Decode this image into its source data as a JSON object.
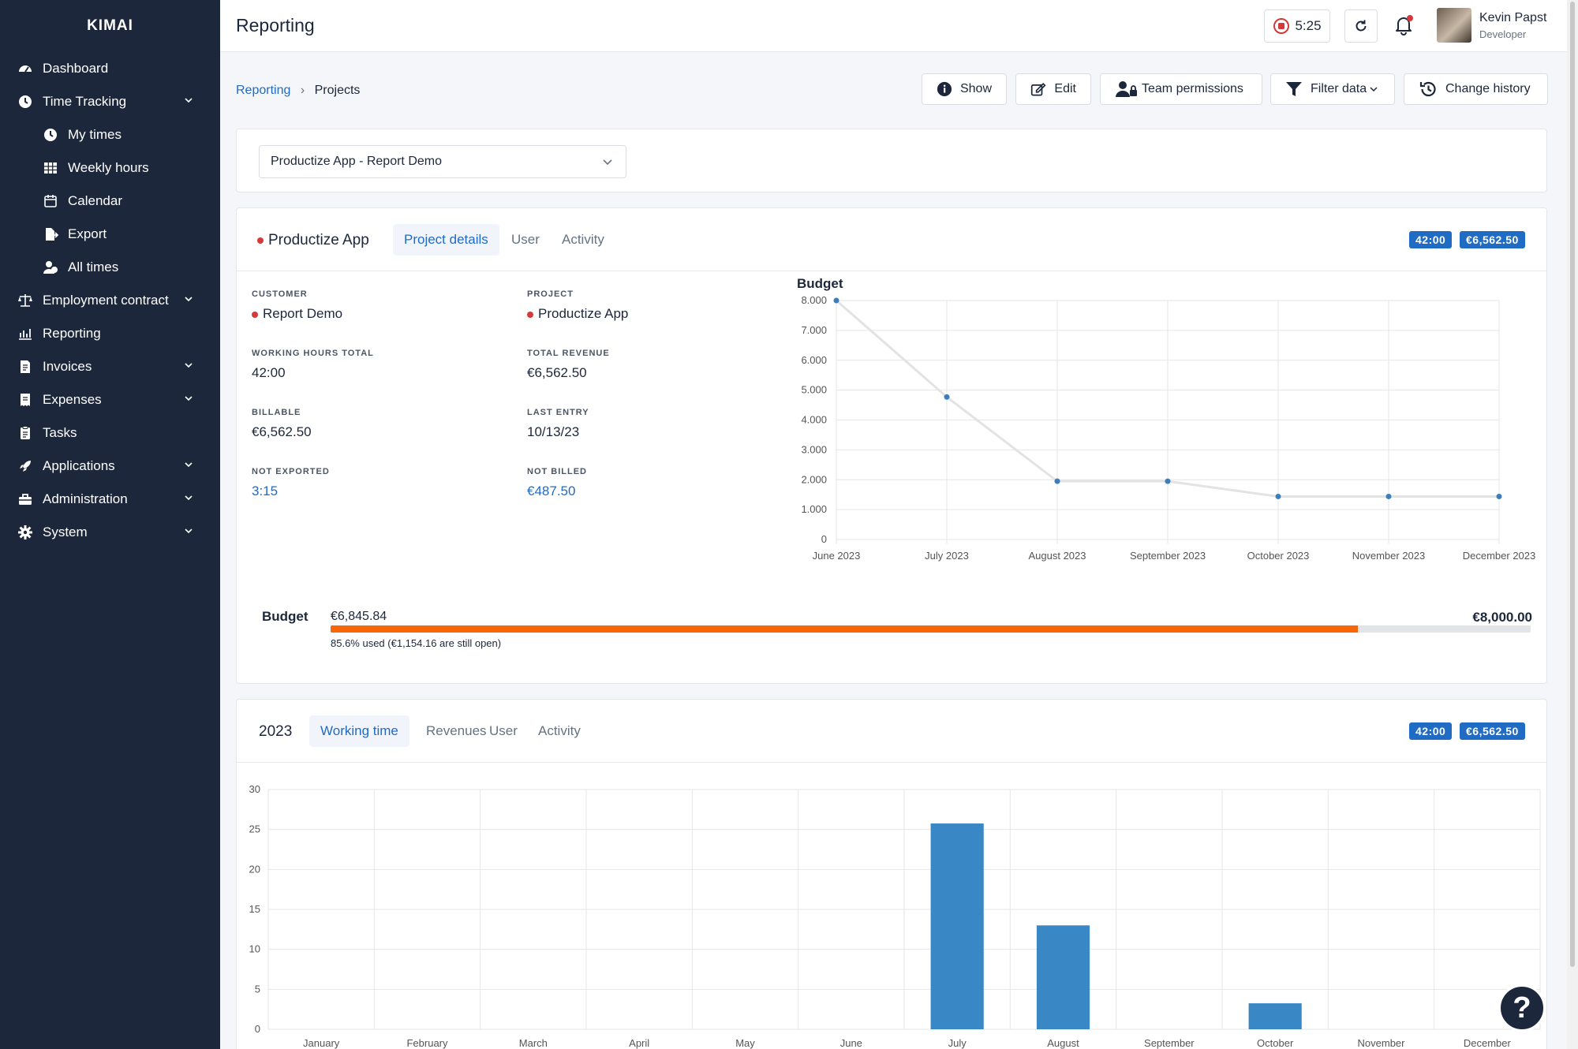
{
  "app": {
    "brand": "KIMAI"
  },
  "sidebar": {
    "items": [
      {
        "label": "Dashboard",
        "icon": "dashboard-icon"
      },
      {
        "label": "Time Tracking",
        "icon": "clock-icon",
        "expand": true
      },
      {
        "label": "My times",
        "icon": "clock-icon",
        "sub": true
      },
      {
        "label": "Weekly hours",
        "icon": "grid-icon",
        "sub": true
      },
      {
        "label": "Calendar",
        "icon": "calendar-icon",
        "sub": true
      },
      {
        "label": "Export",
        "icon": "export-icon",
        "sub": true
      },
      {
        "label": "All times",
        "icon": "users-icon",
        "sub": true
      },
      {
        "label": "Employment contract",
        "icon": "scale-icon",
        "expand": true
      },
      {
        "label": "Reporting",
        "icon": "chart-icon"
      },
      {
        "label": "Invoices",
        "icon": "invoice-icon",
        "expand": true
      },
      {
        "label": "Expenses",
        "icon": "receipt-icon",
        "expand": true
      },
      {
        "label": "Tasks",
        "icon": "clipboard-icon"
      },
      {
        "label": "Applications",
        "icon": "rocket-icon",
        "expand": true
      },
      {
        "label": "Administration",
        "icon": "toolbox-icon",
        "expand": true
      },
      {
        "label": "System",
        "icon": "gear-icon",
        "expand": true
      }
    ]
  },
  "header": {
    "title": "Reporting",
    "timer": "5:25",
    "user": {
      "name": "Kevin Papst",
      "role": "Developer"
    }
  },
  "breadcrumb": {
    "parent": "Reporting",
    "separator": "›",
    "current": "Projects"
  },
  "actions": {
    "show": "Show",
    "edit": "Edit",
    "team": "Team permissions",
    "filter": "Filter data",
    "history": "Change history"
  },
  "selector": {
    "value": "Productize App - Report Demo"
  },
  "project": {
    "name": "Productize App",
    "tabs": [
      "Project details",
      "User",
      "Activity"
    ],
    "badges": {
      "hours": "42:00",
      "revenue": "€6,562.50"
    },
    "details": {
      "customer_label": "CUSTOMER",
      "customer": "Report Demo",
      "project_label": "PROJECT",
      "project": "Productize App",
      "hours_label": "WORKING HOURS TOTAL",
      "hours": "42:00",
      "revenue_label": "TOTAL REVENUE",
      "revenue": "€6,562.50",
      "billable_label": "BILLABLE",
      "billable": "€6,562.50",
      "last_label": "LAST ENTRY",
      "last": "10/13/23",
      "notexp_label": "NOT EXPORTED",
      "notexp": "3:15",
      "notbilled_label": "NOT BILLED",
      "notbilled": "€487.50"
    },
    "budget": {
      "label": "Budget",
      "used": "€6,845.84",
      "total": "€8,000.00",
      "note": "85.6% used (€1,154.16 are still open)",
      "fraction": 0.856,
      "color": "#f76707"
    }
  },
  "yearcard": {
    "year": "2023",
    "tabs": [
      "Working time",
      "Revenues",
      "User",
      "Activity"
    ],
    "badges": {
      "hours": "42:00",
      "revenue": "€6,562.50"
    }
  },
  "chart_data": [
    {
      "type": "line",
      "title": "Budget",
      "x": [
        "June 2023",
        "July 2023",
        "August 2023",
        "September 2023",
        "October 2023",
        "November 2023",
        "December 2023"
      ],
      "values": [
        8000,
        4770,
        1950,
        1950,
        1440,
        1440,
        1440
      ],
      "y_ticks": [
        "0",
        "1.000",
        "2.000",
        "3.000",
        "4.000",
        "5.000",
        "6.000",
        "7.000",
        "8.000"
      ],
      "ylim": [
        0,
        8000
      ],
      "grid": true,
      "color": "#3b7dbd"
    },
    {
      "type": "bar",
      "categories": [
        "January",
        "February",
        "March",
        "April",
        "May",
        "June",
        "July",
        "August",
        "September",
        "October",
        "November",
        "December"
      ],
      "values": [
        0,
        0,
        0,
        0,
        0,
        0,
        25.75,
        13,
        0,
        3.25,
        0,
        0
      ],
      "y_ticks": [
        "0",
        "5",
        "10",
        "15",
        "20",
        "25",
        "30"
      ],
      "ylim": [
        0,
        30
      ],
      "grid": true,
      "color": "#3a87c5"
    }
  ]
}
